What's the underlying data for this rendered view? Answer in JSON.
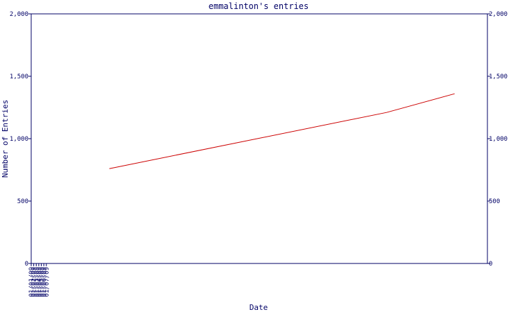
{
  "chart_data": {
    "type": "line",
    "title": "emmalinton's entries",
    "xlabel": "Date",
    "ylabel": "Number of Entries",
    "x_ticks": [
      "01/01/09",
      "01/02/09",
      "01/03/09",
      "01/04/09",
      "01/05/09",
      "01/06/09",
      "01/07/09"
    ],
    "y_ticks": [
      "0",
      "500",
      "1,000",
      "1,500",
      "2,000"
    ],
    "ylim": [
      0,
      2000
    ],
    "xlim": [
      "2009-01-01",
      "2009-07-01"
    ],
    "grid": false,
    "legend": "none",
    "series": [
      {
        "color": "#cc0000",
        "x": [
          "2009-02-01",
          "2009-05-22",
          "2009-06-18"
        ],
        "values": [
          760,
          1210,
          1360
        ]
      }
    ],
    "axis_color": "#000066"
  }
}
